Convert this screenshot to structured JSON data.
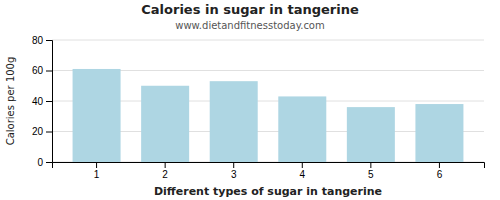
{
  "chart_data": {
    "type": "bar",
    "title": "Calories in sugar in tangerine",
    "subtitle": "www.dietandfitnesstoday.com",
    "xlabel": "Different types of sugar in tangerine",
    "ylabel": "Calories per 100g",
    "categories": [
      1,
      2,
      3,
      4,
      5,
      6
    ],
    "values": [
      61,
      50,
      53,
      43,
      36,
      38
    ],
    "color": "#aed6e3",
    "ylim": [
      0,
      80
    ],
    "yticks": [
      0,
      20,
      40,
      60,
      80
    ],
    "grid": true
  }
}
